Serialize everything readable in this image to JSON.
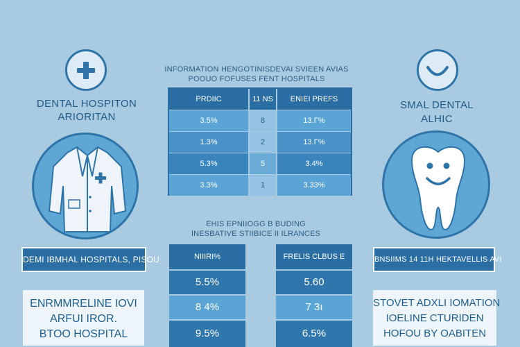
{
  "left": {
    "title_line1": "DENTAL HOSPITON",
    "title_line2": "ARIORITAN",
    "banner": "DEMI IBMHAL HOSPITALS, PISOU",
    "card_line1": "ENRMMRELINE IOVI",
    "card_line2": "ARFUI IROR.",
    "card_line3": "BTOO HOSPITAL",
    "icons": {
      "top": "plus-icon",
      "figure": "doctor-coat-icon"
    }
  },
  "center": {
    "title_line1": "INFORMATION HENGOTINISDEVAI SVIEEN AVIAS",
    "title_line2": "POOUO FOFUSES FENT HOSPITALS",
    "table1": {
      "headers": [
        "PRDIIC",
        "11 NS",
        "ENIEI PREFS"
      ],
      "rows": [
        [
          "3.5%",
          "8",
          "13.Γ%"
        ],
        [
          "1.3%",
          "2",
          "13.Γ%"
        ],
        [
          "5.3%",
          "5",
          "3.4%"
        ],
        [
          "3.3%",
          "1",
          "3.33%"
        ]
      ]
    },
    "sub_title_line1": "EHIS EPNIIOGG B BUDING",
    "sub_title_line2": "INESBATIVE STIIBICE II ILRANCES",
    "table2a": {
      "header": "NIIIRI%",
      "values": [
        "5.5%",
        "8 4%",
        "9.5%"
      ]
    },
    "table2b": {
      "header": "FRELIS CLBUS E",
      "values": [
        "5.60",
        "7 3ı",
        "6.5%"
      ]
    }
  },
  "right": {
    "title_line1": "SMAL DENTAL",
    "title_line2": "ALHIC",
    "banner": "BNSIIMS 14 11H HEKTAVELLIS AVI",
    "card_line1": "STOVET ADXLI IOMATION",
    "card_line2": "IOELINE CTURIDEN",
    "card_line3": "HOFOU BY OABITEN",
    "icons": {
      "top": "smile-icon",
      "figure": "tooth-icon"
    }
  },
  "colors": {
    "background": "#a9cbe2",
    "primary": "#2a6ea3",
    "cell_light": "#5aa4d6",
    "cell_mid": "#4a93c9",
    "card_bg": "#eef5fa",
    "text_dark": "#1f5a86"
  }
}
